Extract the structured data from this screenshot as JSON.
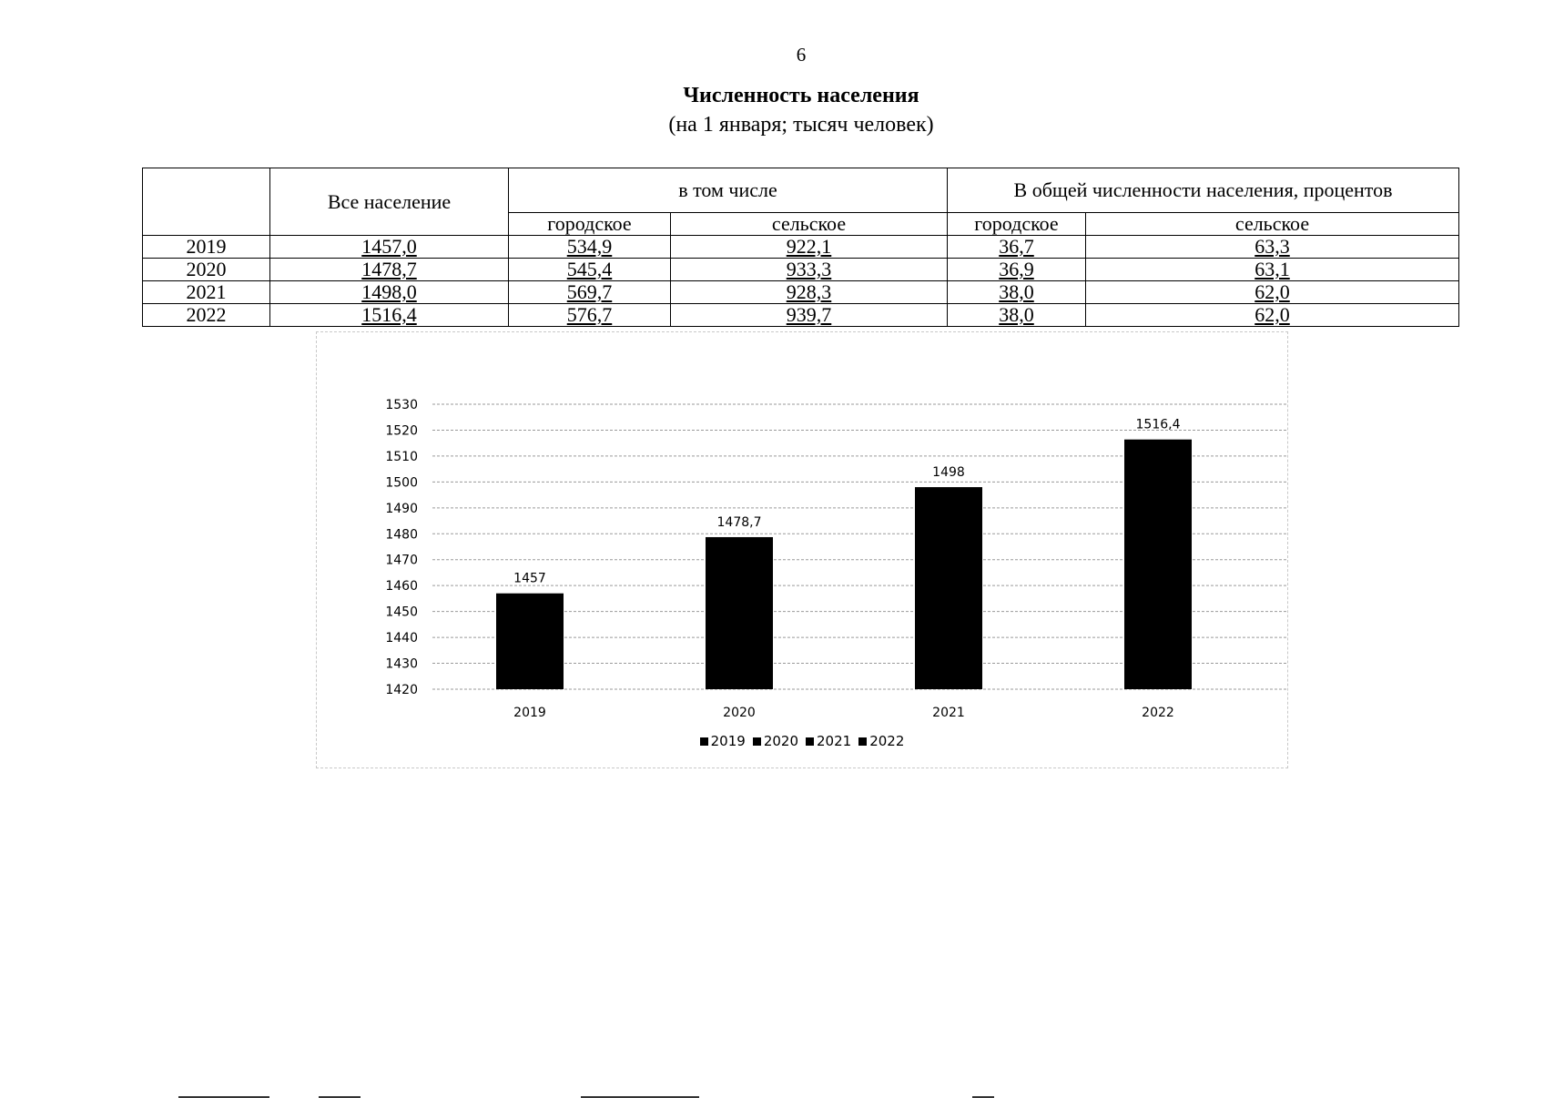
{
  "page_number": "6",
  "title": "Численность населения",
  "subtitle": "(на 1 января; тысяч человек)",
  "table": {
    "headers": {
      "all": "Все население",
      "including": "в том числе",
      "share": "В общей численности населения, процентов",
      "urban": "городское",
      "rural": "сельское",
      "share_urban": "городское",
      "share_rural": "сельское"
    },
    "rows": [
      {
        "year": "2019",
        "all": "1457,0",
        "urban": "534,9",
        "rural": "922,1",
        "share_urban": "36,7",
        "share_rural": "63,3"
      },
      {
        "year": "2020",
        "all": "1478,7",
        "urban": "545,4",
        "rural": "933,3",
        "share_urban": "36,9",
        "share_rural": "63,1"
      },
      {
        "year": "2021",
        "all": "1498,0",
        "urban": "569,7",
        "rural": "928,3",
        "share_urban": "38,0",
        "share_rural": "62,0"
      },
      {
        "year": "2022",
        "all": "1516,4",
        "urban": "576,7",
        "rural": "939,7",
        "share_urban": "38,0",
        "share_rural": "62,0"
      }
    ]
  },
  "chart_data": {
    "type": "bar",
    "categories": [
      "2019",
      "2020",
      "2021",
      "2022"
    ],
    "values": [
      1457,
      1478.7,
      1498,
      1516.4
    ],
    "data_labels": [
      "1457",
      "1478,7",
      "1498",
      "1516,4"
    ],
    "ylim": [
      1420,
      1530
    ],
    "yticks": [
      1420,
      1430,
      1440,
      1450,
      1460,
      1470,
      1480,
      1490,
      1500,
      1510,
      1520,
      1530
    ],
    "grid": true,
    "bar_color": "#000000",
    "legend": [
      "2019",
      "2020",
      "2021",
      "2022"
    ],
    "legend_position": "bottom"
  }
}
